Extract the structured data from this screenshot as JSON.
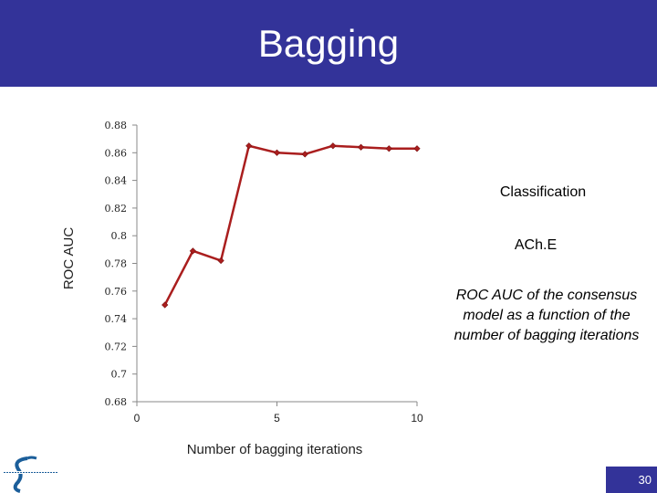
{
  "slide": {
    "title": "Bagging",
    "label_classification": "Classification",
    "label_target": "ACh.E",
    "caption": "ROC AUC of the consensus model as a function of the number of bagging iterations",
    "page_number": "30",
    "header_color": "#333399"
  },
  "chart_data": {
    "type": "line",
    "title": "",
    "xlabel": "Number of bagging iterations",
    "ylabel": "ROC AUC",
    "xlim": [
      0,
      10
    ],
    "ylim": [
      0.68,
      0.88
    ],
    "x_ticks": [
      0,
      5,
      10
    ],
    "y_ticks": [
      0.68,
      0.7,
      0.72,
      0.74,
      0.76,
      0.78,
      0.8,
      0.82,
      0.84,
      0.86,
      0.88
    ],
    "y_tick_labels": [
      "0.68",
      "0.7",
      "0.72",
      "0.74",
      "0.76",
      "0.78",
      "0.8",
      "0.82",
      "0.84",
      "0.86",
      "0.88"
    ],
    "grid": false,
    "legend": "none",
    "series": [
      {
        "color": "#aa1e1e",
        "marker": "diamond",
        "x": [
          1,
          2,
          3,
          4,
          5,
          6,
          7,
          8,
          9,
          10
        ],
        "y": [
          0.75,
          0.789,
          0.782,
          0.865,
          0.86,
          0.859,
          0.865,
          0.864,
          0.863,
          0.863
        ]
      }
    ]
  }
}
